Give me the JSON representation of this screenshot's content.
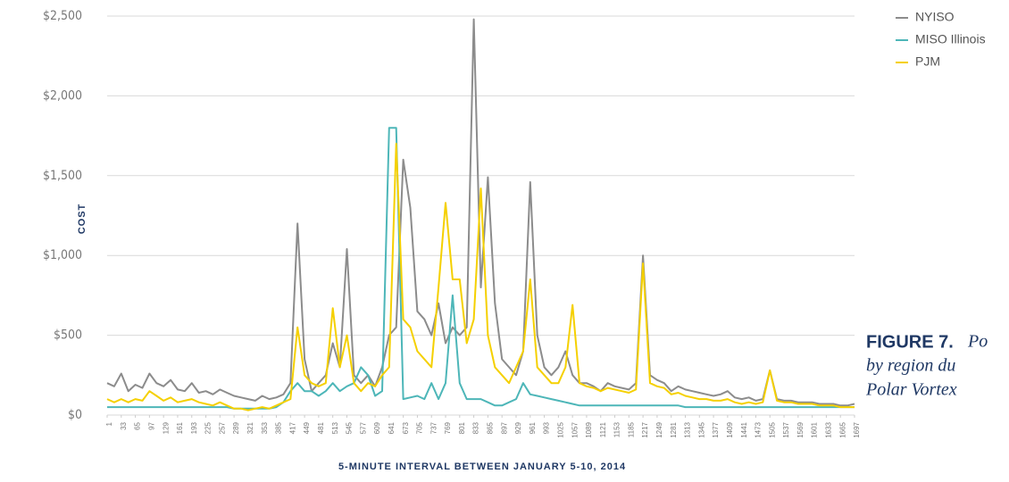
{
  "chart_data": {
    "type": "line",
    "xlabel": "5-MINUTE INTERVAL BETWEEN JANUARY 5-10, 2014",
    "ylabel": "COST",
    "x": [
      1,
      17,
      33,
      49,
      65,
      81,
      97,
      113,
      129,
      145,
      161,
      177,
      193,
      209,
      225,
      241,
      257,
      273,
      289,
      305,
      321,
      337,
      353,
      369,
      385,
      401,
      417,
      433,
      449,
      465,
      481,
      497,
      513,
      529,
      545,
      561,
      577,
      593,
      609,
      625,
      641,
      657,
      673,
      689,
      705,
      721,
      737,
      753,
      769,
      785,
      801,
      817,
      833,
      849,
      865,
      881,
      897,
      913,
      929,
      945,
      961,
      977,
      993,
      1009,
      1025,
      1041,
      1057,
      1073,
      1089,
      1105,
      1121,
      1137,
      1153,
      1169,
      1185,
      1201,
      1217,
      1233,
      1249,
      1265,
      1281,
      1297,
      1313,
      1329,
      1345,
      1361,
      1377,
      1393,
      1409,
      1425,
      1441,
      1457,
      1473,
      1489,
      1505,
      1521,
      1537,
      1553,
      1569,
      1585,
      1601,
      1617,
      1633,
      1649,
      1665,
      1681,
      1697
    ],
    "series": [
      {
        "name": "NYISO",
        "color": "#8c8c8c",
        "values": [
          200,
          180,
          260,
          150,
          190,
          170,
          260,
          200,
          180,
          220,
          160,
          150,
          200,
          140,
          150,
          130,
          160,
          140,
          120,
          110,
          100,
          90,
          120,
          100,
          110,
          130,
          200,
          1200,
          350,
          150,
          200,
          250,
          450,
          300,
          1040,
          250,
          200,
          250,
          180,
          300,
          500,
          550,
          1600,
          1300,
          650,
          600,
          500,
          700,
          450,
          550,
          500,
          550,
          2480,
          800,
          1490,
          700,
          350,
          300,
          250,
          400,
          1460,
          500,
          300,
          250,
          300,
          400,
          250,
          200,
          200,
          180,
          150,
          200,
          180,
          170,
          160,
          200,
          1000,
          250,
          220,
          200,
          150,
          180,
          160,
          150,
          140,
          130,
          120,
          130,
          150,
          110,
          100,
          110,
          90,
          100,
          280,
          100,
          90,
          90,
          80,
          80,
          80,
          70,
          70,
          70,
          60,
          60,
          70
        ]
      },
      {
        "name": "MISO Illinois",
        "color": "#4db6b8",
        "values": [
          50,
          50,
          50,
          50,
          50,
          50,
          50,
          50,
          50,
          50,
          50,
          50,
          50,
          50,
          50,
          50,
          50,
          50,
          40,
          40,
          40,
          40,
          40,
          40,
          50,
          80,
          150,
          200,
          150,
          150,
          120,
          150,
          200,
          150,
          180,
          200,
          300,
          250,
          120,
          150,
          1800,
          1800,
          100,
          110,
          120,
          100,
          200,
          100,
          200,
          750,
          200,
          100,
          100,
          100,
          80,
          60,
          60,
          80,
          100,
          200,
          130,
          120,
          110,
          100,
          90,
          80,
          70,
          60,
          60,
          60,
          60,
          60,
          60,
          60,
          60,
          60,
          60,
          60,
          60,
          60,
          60,
          60,
          50,
          50,
          50,
          50,
          50,
          50,
          50,
          50,
          50,
          50,
          50,
          50,
          50,
          50,
          50,
          50,
          50,
          50,
          50,
          50,
          50,
          50,
          50,
          50,
          50
        ]
      },
      {
        "name": "PJM",
        "color": "#f5d000",
        "values": [
          100,
          80,
          100,
          80,
          100,
          90,
          150,
          120,
          90,
          110,
          80,
          90,
          100,
          80,
          70,
          60,
          80,
          60,
          40,
          40,
          30,
          40,
          50,
          40,
          60,
          80,
          100,
          550,
          250,
          200,
          180,
          200,
          670,
          300,
          500,
          200,
          150,
          200,
          180,
          250,
          300,
          1700,
          600,
          550,
          400,
          350,
          300,
          800,
          1330,
          850,
          850,
          450,
          600,
          1420,
          500,
          300,
          250,
          200,
          300,
          400,
          850,
          300,
          250,
          200,
          200,
          300,
          690,
          200,
          180,
          170,
          150,
          170,
          160,
          150,
          140,
          160,
          950,
          200,
          180,
          170,
          130,
          140,
          120,
          110,
          100,
          100,
          90,
          90,
          100,
          80,
          70,
          80,
          70,
          80,
          280,
          90,
          80,
          80,
          70,
          70,
          70,
          60,
          60,
          60,
          50,
          50,
          50
        ]
      }
    ],
    "xlim": [
      1,
      1697
    ],
    "xticks": [
      1,
      33,
      65,
      97,
      129,
      161,
      193,
      225,
      257,
      289,
      321,
      353,
      385,
      417,
      449,
      481,
      513,
      545,
      577,
      609,
      641,
      673,
      705,
      737,
      769,
      801,
      833,
      865,
      897,
      929,
      961,
      993,
      1025,
      1057,
      1089,
      1121,
      1153,
      1185,
      1217,
      1249,
      1281,
      1313,
      1345,
      1377,
      1409,
      1441,
      1473,
      1505,
      1537,
      1569,
      1601,
      1633,
      1665,
      1697
    ],
    "ylim": [
      0,
      2500
    ],
    "yticks": [
      {
        "value": 0,
        "label": "$0"
      },
      {
        "value": 500,
        "label": "$500"
      },
      {
        "value": 1000,
        "label": "$1,000"
      },
      {
        "value": 1500,
        "label": "$1,500"
      },
      {
        "value": 2000,
        "label": "$2,000"
      },
      {
        "value": 2500,
        "label": "$2,500"
      }
    ],
    "grid": true,
    "legend": "top-right",
    "caption": {
      "label": "FIGURE 7.",
      "lines": [
        "Po",
        "by region du",
        "Polar Vortex"
      ]
    }
  }
}
